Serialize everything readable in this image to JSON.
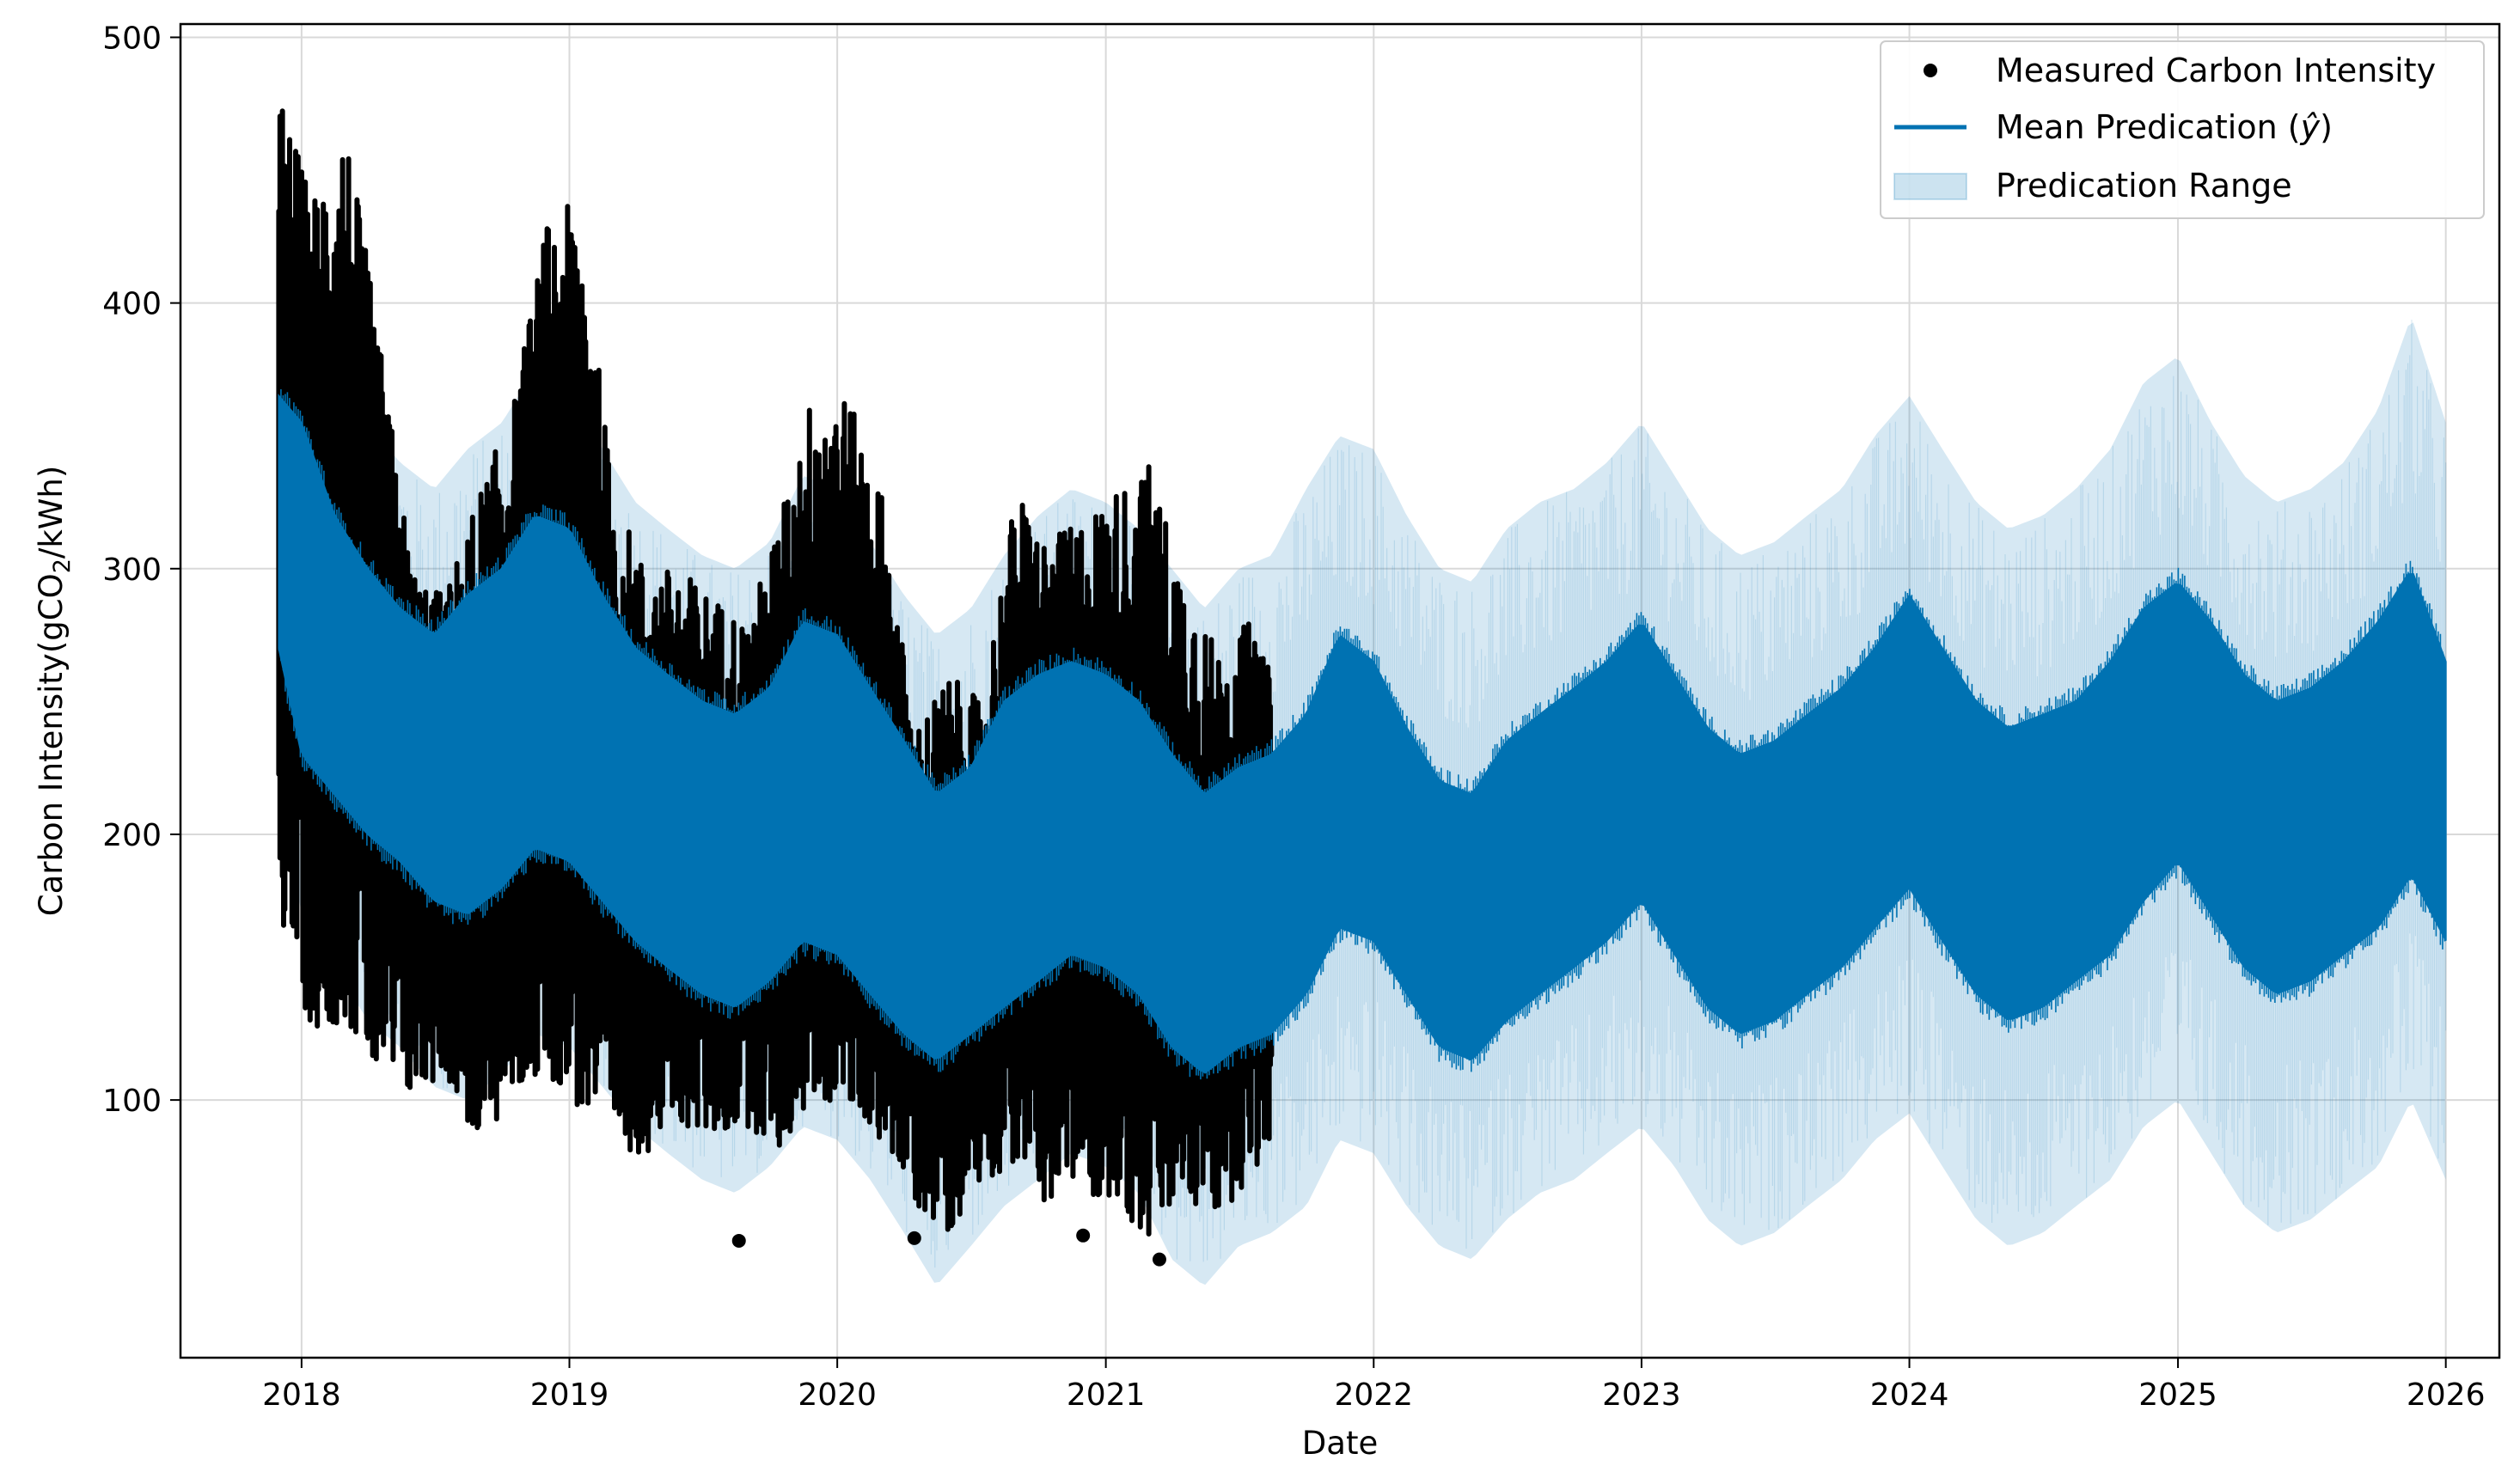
{
  "colors": {
    "measured": "#000000",
    "mean": "#0072b2",
    "range": "#0072b2",
    "grid": "#d9d9d9",
    "frame": "#000000"
  },
  "chart_data": {
    "type": "scatter",
    "title": "",
    "xlabel": "Date",
    "ylabel": "Carbon Intensity(gCO",
    "ylabel_sub": "2",
    "ylabel_suffix": "/kWh)",
    "x_axis_type": "date",
    "xlim": [
      "2017-07-20",
      "2026-03-15"
    ],
    "ylim": [
      3,
      505
    ],
    "x_ticks": [
      "2018",
      "2019",
      "2020",
      "2021",
      "2022",
      "2023",
      "2024",
      "2025",
      "2026"
    ],
    "y_ticks": [
      100,
      200,
      300,
      400,
      500
    ],
    "grid": true,
    "legend_position": "top-right",
    "legend": {
      "measured": "Measured Carbon Intensity",
      "mean_prefix": "Mean Predication (",
      "mean_symbol": "ŷ",
      "mean_suffix": ")",
      "range": "Predication Range"
    },
    "measured_range": [
      "2017-12-01",
      "2021-08-15"
    ],
    "forecast_range": [
      "2017-12-01",
      "2026-01-01"
    ],
    "measured_envelope": {
      "dates": [
        "2017-12-01",
        "2018-01-15",
        "2018-03-01",
        "2018-04-15",
        "2018-06-01",
        "2018-07-15",
        "2018-09-01",
        "2018-10-15",
        "2018-12-01",
        "2019-01-15",
        "2019-03-01",
        "2019-04-15",
        "2019-06-01",
        "2019-07-15",
        "2019-09-01",
        "2019-10-15",
        "2019-12-01",
        "2020-01-15",
        "2020-03-01",
        "2020-04-15",
        "2020-06-01",
        "2020-07-15",
        "2020-09-01",
        "2020-10-15",
        "2020-12-01",
        "2021-01-15",
        "2021-03-01",
        "2021-04-15",
        "2021-06-01",
        "2021-07-15",
        "2021-08-15"
      ],
      "upper": [
        480,
        440,
        470,
        390,
        300,
        290,
        330,
        360,
        430,
        440,
        330,
        300,
        300,
        290,
        280,
        320,
        370,
        365,
        330,
        240,
        260,
        250,
        330,
        310,
        320,
        330,
        340,
        300,
        270,
        280,
        260
      ],
      "lower": [
        170,
        125,
        130,
        105,
        100,
        110,
        80,
        100,
        110,
        95,
        80,
        80,
        90,
        85,
        90,
        80,
        100,
        95,
        85,
        60,
        50,
        70,
        75,
        60,
        65,
        60,
        45,
        60,
        55,
        70,
        80
      ]
    },
    "outlier_points": [
      {
        "x": "2019-08-20",
        "y": 47
      },
      {
        "x": "2020-12-01",
        "y": 49
      },
      {
        "x": "2021-03-15",
        "y": 40
      },
      {
        "x": "2020-04-15",
        "y": 48
      }
    ],
    "mean_envelope": {
      "dates": [
        "2017-12-01",
        "2018-01-01",
        "2018-02-15",
        "2018-04-01",
        "2018-05-15",
        "2018-07-01",
        "2018-08-15",
        "2018-10-01",
        "2018-11-15",
        "2019-01-01",
        "2019-02-15",
        "2019-04-01",
        "2019-05-15",
        "2019-07-01",
        "2019-08-15",
        "2019-10-01",
        "2019-11-15",
        "2020-01-01",
        "2020-02-15",
        "2020-04-01",
        "2020-05-15",
        "2020-07-01",
        "2020-08-15",
        "2020-10-01",
        "2020-11-15",
        "2021-01-01",
        "2021-02-15",
        "2021-04-01",
        "2021-05-15",
        "2021-07-01",
        "2021-08-15",
        "2021-10-01",
        "2021-11-15",
        "2022-01-01",
        "2022-02-15",
        "2022-04-01",
        "2022-05-15",
        "2022-07-01",
        "2022-08-15",
        "2022-10-01",
        "2022-11-15",
        "2023-01-01",
        "2023-02-15",
        "2023-04-01",
        "2023-05-15",
        "2023-07-01",
        "2023-08-15",
        "2023-10-01",
        "2023-11-15",
        "2024-01-01",
        "2024-02-15",
        "2024-04-01",
        "2024-05-15",
        "2024-07-01",
        "2024-08-15",
        "2024-10-01",
        "2024-11-15",
        "2025-01-01",
        "2025-02-15",
        "2025-04-01",
        "2025-05-15",
        "2025-07-01",
        "2025-08-15",
        "2025-10-01",
        "2025-11-15",
        "2026-01-01"
      ],
      "upper": [
        365,
        355,
        320,
        300,
        285,
        275,
        290,
        300,
        320,
        315,
        290,
        270,
        260,
        250,
        245,
        255,
        280,
        275,
        255,
        235,
        215,
        225,
        250,
        260,
        265,
        260,
        250,
        230,
        215,
        225,
        230,
        245,
        275,
        265,
        240,
        220,
        215,
        235,
        245,
        255,
        265,
        280,
        260,
        240,
        230,
        235,
        245,
        255,
        270,
        290,
        270,
        250,
        240,
        245,
        250,
        265,
        285,
        295,
        280,
        260,
        250,
        255,
        265,
        280,
        300,
        265
      ],
      "lower": [
        270,
        230,
        215,
        200,
        190,
        175,
        170,
        180,
        195,
        190,
        175,
        160,
        150,
        140,
        135,
        145,
        160,
        155,
        140,
        125,
        115,
        125,
        135,
        145,
        155,
        150,
        140,
        120,
        110,
        120,
        125,
        140,
        165,
        160,
        140,
        120,
        115,
        130,
        140,
        150,
        160,
        175,
        155,
        135,
        125,
        130,
        140,
        150,
        165,
        180,
        160,
        140,
        130,
        135,
        145,
        155,
        175,
        190,
        170,
        150,
        140,
        145,
        155,
        165,
        185,
        160
      ]
    },
    "range_envelope": {
      "dates": [
        "2017-12-01",
        "2018-01-01",
        "2018-02-15",
        "2018-04-01",
        "2018-05-15",
        "2018-07-01",
        "2018-08-15",
        "2018-10-01",
        "2018-11-15",
        "2019-01-01",
        "2019-02-15",
        "2019-04-01",
        "2019-05-15",
        "2019-07-01",
        "2019-08-15",
        "2019-10-01",
        "2019-11-15",
        "2020-01-01",
        "2020-02-15",
        "2020-04-01",
        "2020-05-15",
        "2020-07-01",
        "2020-08-15",
        "2020-10-01",
        "2020-11-15",
        "2021-01-01",
        "2021-02-15",
        "2021-04-01",
        "2021-05-15",
        "2021-07-01",
        "2021-08-15",
        "2021-10-01",
        "2021-11-15",
        "2022-01-01",
        "2022-02-15",
        "2022-04-01",
        "2022-05-15",
        "2022-07-01",
        "2022-08-15",
        "2022-10-01",
        "2022-11-15",
        "2023-01-01",
        "2023-02-15",
        "2023-04-01",
        "2023-05-15",
        "2023-07-01",
        "2023-08-15",
        "2023-10-01",
        "2023-11-15",
        "2024-01-01",
        "2024-02-15",
        "2024-04-01",
        "2024-05-15",
        "2024-07-01",
        "2024-08-15",
        "2024-10-01",
        "2024-11-15",
        "2025-01-01",
        "2025-02-15",
        "2025-04-01",
        "2025-05-15",
        "2025-07-01",
        "2025-08-15",
        "2025-10-01",
        "2025-11-15",
        "2026-01-01"
      ],
      "upper": [
        430,
        420,
        380,
        355,
        340,
        330,
        345,
        355,
        375,
        370,
        345,
        325,
        315,
        305,
        300,
        310,
        335,
        330,
        310,
        290,
        275,
        285,
        305,
        320,
        330,
        325,
        315,
        300,
        285,
        300,
        305,
        330,
        350,
        345,
        320,
        300,
        295,
        315,
        325,
        330,
        340,
        355,
        335,
        315,
        305,
        310,
        320,
        330,
        350,
        365,
        345,
        325,
        315,
        320,
        330,
        345,
        370,
        380,
        355,
        335,
        325,
        330,
        340,
        360,
        395,
        355
      ],
      "lower": [
        220,
        170,
        150,
        130,
        120,
        105,
        100,
        110,
        125,
        120,
        105,
        90,
        80,
        70,
        65,
        75,
        90,
        85,
        70,
        50,
        30,
        45,
        60,
        70,
        80,
        75,
        65,
        40,
        30,
        45,
        50,
        60,
        85,
        80,
        60,
        45,
        40,
        55,
        65,
        70,
        80,
        90,
        75,
        55,
        45,
        50,
        60,
        70,
        85,
        95,
        75,
        55,
        45,
        50,
        60,
        70,
        90,
        100,
        80,
        60,
        50,
        55,
        65,
        75,
        100,
        70
      ]
    }
  }
}
